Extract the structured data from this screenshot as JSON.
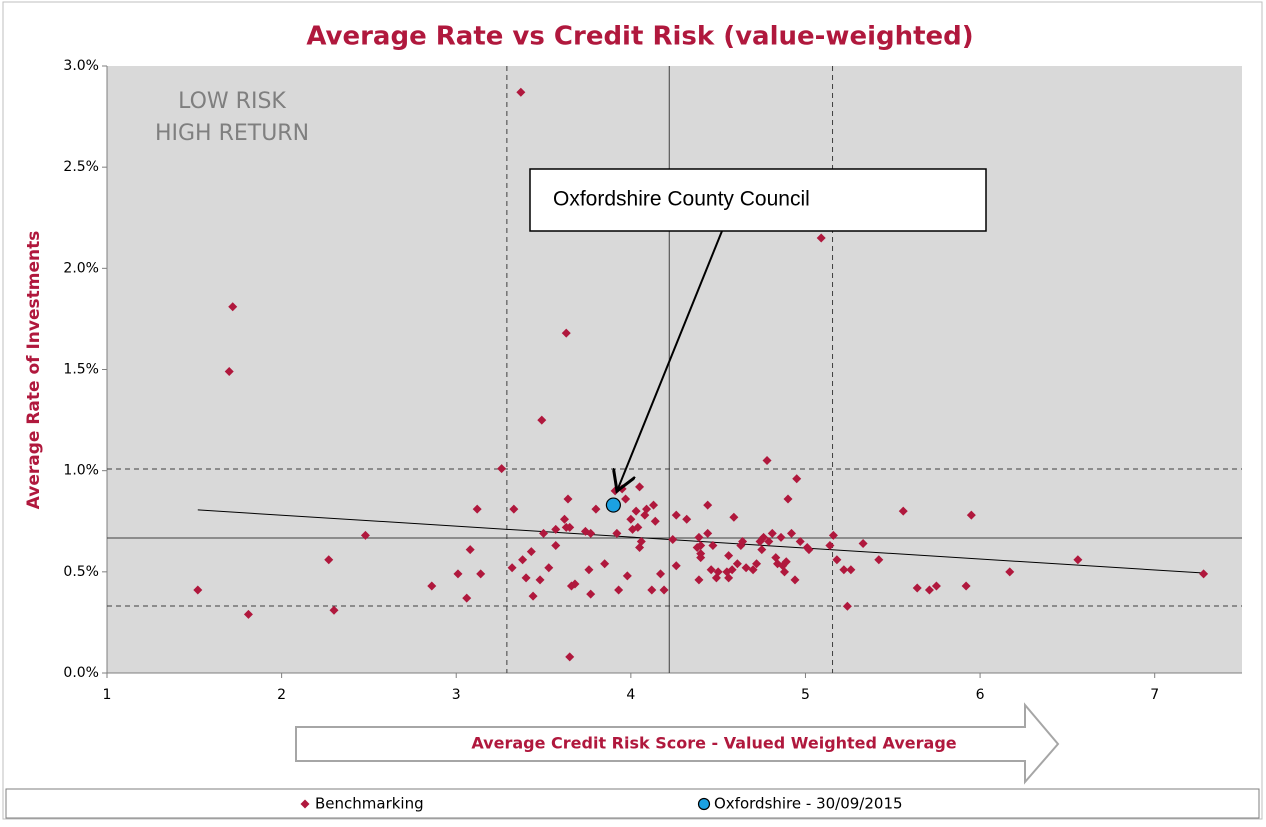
{
  "chart_data": {
    "type": "scatter",
    "title": "Average Rate vs Credit Risk (value-weighted)",
    "xlabel": "Average Credit Risk Score - Valued Weighted Average",
    "ylabel": "Average Rate of Investments",
    "xlim": [
      1,
      7.5
    ],
    "ylim": [
      0,
      3.0
    ],
    "xticks": [
      1,
      2,
      3,
      4,
      5,
      6,
      7
    ],
    "yticks": [
      {
        "value": 0,
        "label": "0.0%"
      },
      {
        "value": 0.5,
        "label": "0.5%"
      },
      {
        "value": 1.0,
        "label": "1.0%"
      },
      {
        "value": 1.5,
        "label": "1.5%"
      },
      {
        "value": 2.0,
        "label": "2.0%"
      },
      {
        "value": 2.5,
        "label": "2.5%"
      },
      {
        "value": 3.0,
        "label": "3.0%"
      }
    ],
    "annotations": [
      "LOW RISK",
      "HIGH RETURN",
      "Oxfordshire County Council"
    ],
    "vlines": [
      {
        "value": 3.29,
        "style": "dashed"
      },
      {
        "value": 4.22,
        "style": "solid"
      },
      {
        "value": 5.155,
        "style": "dashed"
      }
    ],
    "hlines": [
      {
        "value": 1.008,
        "style": "dashed"
      },
      {
        "value": 0.667,
        "style": "solid"
      },
      {
        "value": 0.331,
        "style": "dashed"
      }
    ],
    "trendline": {
      "x": [
        1.52,
        7.28
      ],
      "values": [
        0.806,
        0.494
      ]
    },
    "series": [
      {
        "name": "Benchmarking",
        "color": "#b0183d",
        "marker": "diamond",
        "x": [
          1.52,
          1.81,
          1.7,
          1.72,
          2.27,
          2.3,
          2.48,
          2.86,
          3.01,
          3.08,
          3.06,
          3.12,
          3.14,
          3.26,
          3.32,
          3.33,
          3.37,
          3.38,
          3.4,
          3.43,
          3.44,
          3.48,
          3.49,
          3.5,
          3.53,
          3.57,
          3.57,
          3.63,
          3.62,
          3.63,
          3.64,
          3.65,
          3.65,
          3.66,
          3.68,
          3.74,
          3.76,
          3.77,
          3.77,
          3.8,
          3.85,
          3.91,
          3.92,
          3.93,
          3.95,
          3.97,
          3.98,
          4.0,
          4.01,
          4.03,
          4.04,
          4.05,
          4.05,
          4.06,
          4.08,
          4.09,
          4.12,
          4.13,
          4.14,
          4.17,
          4.19,
          4.24,
          4.26,
          4.26,
          4.32,
          4.38,
          4.39,
          4.39,
          4.4,
          4.4,
          4.4,
          4.44,
          4.44,
          4.46,
          4.47,
          4.49,
          4.5,
          4.55,
          4.56,
          4.56,
          4.58,
          4.59,
          4.61,
          4.63,
          4.64,
          4.66,
          4.7,
          4.72,
          4.74,
          4.75,
          4.76,
          4.78,
          4.79,
          4.81,
          4.83,
          4.84,
          4.86,
          4.87,
          4.88,
          4.89,
          4.9,
          4.92,
          4.94,
          4.95,
          4.97,
          5.01,
          5.02,
          5.09,
          5.14,
          5.16,
          5.18,
          5.22,
          5.24,
          5.26,
          5.33,
          5.42,
          5.56,
          5.64,
          5.71,
          5.75,
          5.92,
          5.95,
          6.17,
          6.56,
          7.28
        ],
        "values": [
          0.41,
          0.29,
          1.49,
          1.81,
          0.56,
          0.31,
          0.68,
          0.43,
          0.49,
          0.61,
          0.37,
          0.81,
          0.49,
          1.01,
          0.52,
          0.81,
          2.87,
          0.56,
          0.47,
          0.6,
          0.38,
          0.46,
          1.25,
          0.69,
          0.52,
          0.63,
          0.71,
          1.68,
          0.76,
          0.72,
          0.86,
          0.72,
          0.08,
          0.43,
          0.44,
          0.7,
          0.51,
          0.39,
          0.69,
          0.81,
          0.54,
          0.9,
          0.69,
          0.41,
          0.91,
          0.86,
          0.48,
          0.76,
          0.71,
          0.8,
          0.72,
          0.92,
          0.62,
          0.65,
          0.78,
          0.81,
          0.41,
          0.83,
          0.75,
          0.49,
          0.41,
          0.66,
          0.53,
          0.78,
          0.76,
          0.62,
          0.46,
          0.67,
          0.63,
          0.57,
          0.59,
          0.83,
          0.69,
          0.51,
          0.63,
          0.47,
          0.5,
          0.5,
          0.58,
          0.47,
          0.51,
          0.77,
          0.54,
          0.63,
          0.65,
          0.52,
          0.51,
          0.54,
          0.65,
          0.61,
          0.67,
          1.05,
          0.65,
          0.69,
          0.57,
          0.54,
          0.67,
          0.53,
          0.5,
          0.55,
          0.86,
          0.69,
          0.46,
          0.96,
          0.65,
          0.62,
          0.61,
          2.15,
          0.63,
          0.68,
          0.56,
          0.51,
          0.33,
          0.51,
          0.64,
          0.56,
          0.8,
          0.42,
          0.41,
          0.43,
          0.43,
          0.78,
          0.5,
          0.56,
          0.49
        ]
      },
      {
        "name": "Oxfordshire - 30/09/2015",
        "color": "#1ba1e2",
        "marker": "circle",
        "x": [
          3.9
        ],
        "values": [
          0.83
        ]
      }
    ]
  }
}
